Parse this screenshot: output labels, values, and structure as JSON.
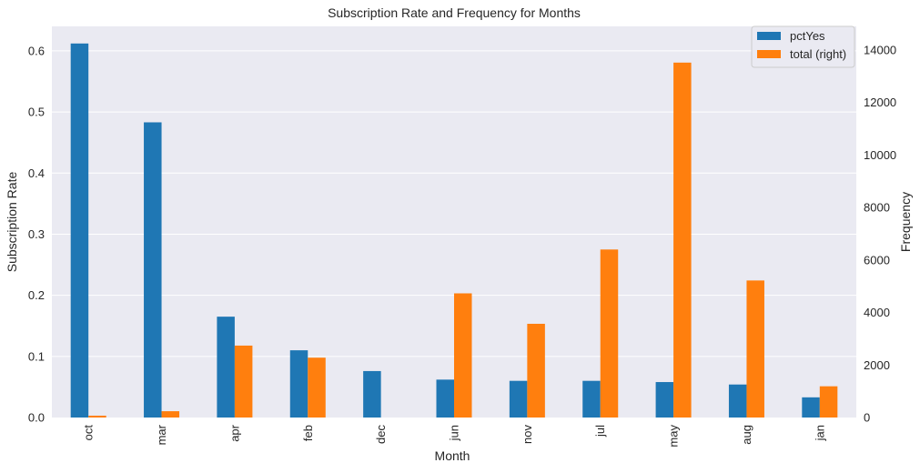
{
  "chart_data": {
    "type": "bar",
    "title": "Subscription Rate and Frequency for Months",
    "xlabel": "Month",
    "ylabel": "Subscription Rate",
    "ylabel_right": "Frequency",
    "categories": [
      "oct",
      "mar",
      "apr",
      "feb",
      "dec",
      "jun",
      "nov",
      "jul",
      "may",
      "aug",
      "jan"
    ],
    "series": [
      {
        "name": "pctYes",
        "axis": "left",
        "color": "#1f77b4",
        "values": [
          0.612,
          0.483,
          0.165,
          0.11,
          0.076,
          0.062,
          0.06,
          0.06,
          0.058,
          0.054,
          0.033
        ]
      },
      {
        "name": "total (right)",
        "axis": "right",
        "color": "#ff7f0e",
        "values": [
          70,
          240,
          2740,
          2280,
          0,
          4730,
          3570,
          6400,
          13520,
          5220,
          1190
        ]
      }
    ],
    "ylim": [
      0,
      0.64
    ],
    "ylim_right": [
      0,
      14900
    ],
    "yticks": [
      0.0,
      0.1,
      0.2,
      0.3,
      0.4,
      0.5,
      0.6
    ],
    "yticks_right": [
      0,
      2000,
      4000,
      6000,
      8000,
      10000,
      12000,
      14000
    ],
    "ytick_labels": [
      "0.0",
      "0.1",
      "0.2",
      "0.3",
      "0.4",
      "0.5",
      "0.6"
    ],
    "ytick_labels_right": [
      "0",
      "2000",
      "4000",
      "6000",
      "8000",
      "10000",
      "12000",
      "14000"
    ],
    "grid": true,
    "legend_position": "top-right",
    "background_color": "#eaeaf2"
  }
}
